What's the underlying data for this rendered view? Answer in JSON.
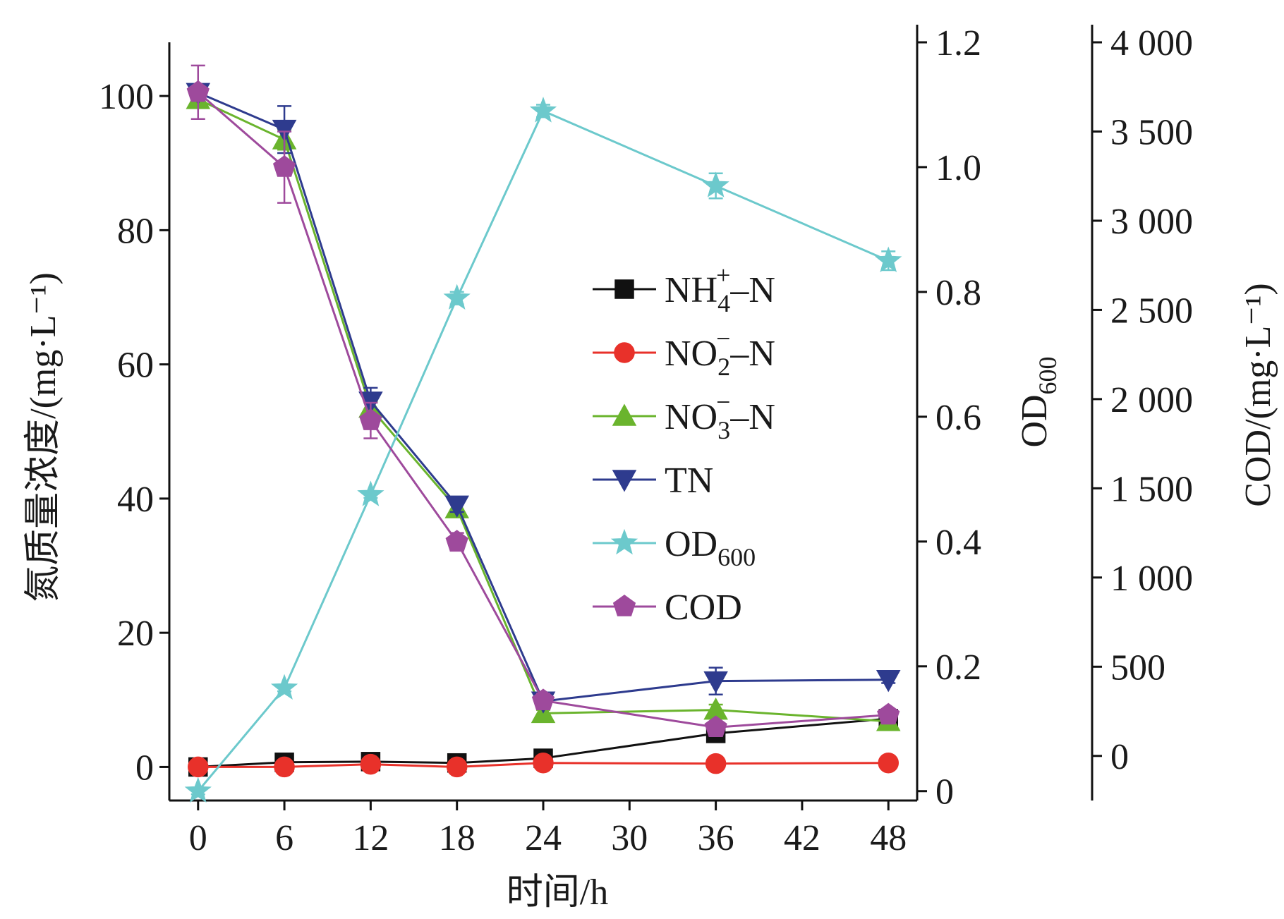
{
  "chart_data": {
    "type": "line",
    "title": "",
    "xlabel": "时间/h",
    "x": [
      0,
      6,
      12,
      18,
      24,
      36,
      48
    ],
    "xticks": [
      0,
      6,
      12,
      18,
      24,
      30,
      36,
      42,
      48
    ],
    "xlim": [
      -2,
      50
    ],
    "grid": false,
    "legend_position": "center-right",
    "axes": {
      "left": {
        "label": "氮质量浓度/(mg·L⁻¹)",
        "ylim": [
          -5,
          108
        ],
        "ticks": [
          0,
          20,
          40,
          60,
          80,
          100
        ]
      },
      "right1": {
        "label": "OD600",
        "ylim": [
          -0.015,
          1.2
        ],
        "ticks": [
          0,
          0.2,
          0.4,
          0.6,
          0.8,
          1.0,
          1.2
        ],
        "tick_labels": [
          "0",
          "0.2",
          "0.4",
          "0.6",
          "0.8",
          "1.0",
          "1.2"
        ]
      },
      "right2": {
        "label": "COD/(mg·L⁻¹)",
        "ylim": [
          -250,
          4000
        ],
        "ticks": [
          0,
          500,
          1000,
          1500,
          2000,
          2500,
          3000,
          3500,
          4000
        ],
        "tick_labels": [
          "0",
          "500",
          "1 000",
          "1 500",
          "2 000",
          "2 500",
          "3 000",
          "3 500",
          "4 000"
        ]
      }
    },
    "series": [
      {
        "name": "NH4+–N",
        "legend": {
          "main": "NH",
          "sub": "4",
          "sup": "+",
          "tail": "–N"
        },
        "axis": "left",
        "color": "#111111",
        "marker": "square",
        "values": [
          0,
          0.7,
          0.8,
          0.6,
          1.3,
          5.0,
          7.2
        ],
        "errors": [
          0.3,
          0.3,
          0.3,
          0.3,
          0.4,
          0.5,
          0.5
        ]
      },
      {
        "name": "NO2−–N",
        "legend": {
          "main": "NO",
          "sub": "2",
          "sup": "−",
          "tail": "–N"
        },
        "axis": "left",
        "color": "#e8312a",
        "marker": "circle",
        "values": [
          0,
          0,
          0.4,
          0,
          0.6,
          0.5,
          0.6
        ],
        "errors": [
          0.2,
          0.2,
          0.2,
          0.2,
          0.2,
          0.2,
          0.2
        ]
      },
      {
        "name": "NO3−–N",
        "legend": {
          "main": "NO",
          "sub": "3",
          "sup": "−",
          "tail": "–N"
        },
        "axis": "left",
        "color": "#6ab42d",
        "marker": "triangle-up",
        "values": [
          99.5,
          93.5,
          53.5,
          38.5,
          8.0,
          8.5,
          6.8
        ],
        "errors": [
          1.0,
          1.5,
          1.0,
          1.0,
          0.5,
          0.8,
          0.5
        ]
      },
      {
        "name": "TN",
        "legend": {
          "main": "TN",
          "sub": "",
          "sup": "",
          "tail": ""
        },
        "axis": "left",
        "color": "#2e3b8e",
        "marker": "triangle-down",
        "values": [
          100.5,
          95.0,
          54.5,
          39.0,
          9.8,
          12.8,
          13.0
        ],
        "errors": [
          1.0,
          3.5,
          2.0,
          1.0,
          0.6,
          2.0,
          0.5
        ]
      },
      {
        "name": "OD600",
        "legend": {
          "main": "OD",
          "sub": "600",
          "sup": "",
          "tail": ""
        },
        "axis": "right1",
        "color": "#6cc9cc",
        "marker": "star",
        "values": [
          0,
          0.165,
          0.475,
          0.79,
          1.09,
          0.97,
          0.85
        ],
        "errors": [
          0.005,
          0.005,
          0.005,
          0.01,
          0.01,
          0.02,
          0.015
        ]
      },
      {
        "name": "COD",
        "legend": {
          "main": "COD",
          "sub": "",
          "sup": "",
          "tail": ""
        },
        "axis": "right2",
        "color": "#9e4a9c",
        "marker": "pentagon",
        "values": [
          3720,
          3300,
          1880,
          1200,
          310,
          160,
          230
        ],
        "errors": [
          150,
          200,
          100,
          50,
          40,
          30,
          30
        ]
      }
    ]
  }
}
